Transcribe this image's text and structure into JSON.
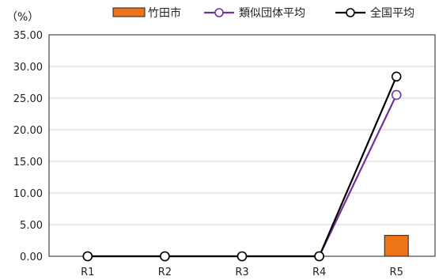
{
  "chart_data": {
    "type": "bar",
    "unit_label": "（%）",
    "categories": [
      "R1",
      "R2",
      "R3",
      "R4",
      "R5"
    ],
    "ylim": [
      0,
      35
    ],
    "y_ticks": [
      "35.00",
      "30.00",
      "25.00",
      "20.00",
      "15.00",
      "10.00",
      "5.00",
      "0.00"
    ],
    "grid": true,
    "legend_position": "top-right",
    "series": [
      {
        "name": "竹田市",
        "type": "bar",
        "color": "#EE7418",
        "values": [
          0,
          0,
          0,
          0,
          3.3
        ]
      },
      {
        "name": "類似団体平均",
        "type": "line",
        "color": "#7030A0",
        "values": [
          0,
          0,
          0,
          0,
          25.5
        ]
      },
      {
        "name": "全国平均",
        "type": "line",
        "color": "#000000",
        "values": [
          0,
          0,
          0,
          0,
          28.4
        ]
      }
    ]
  }
}
